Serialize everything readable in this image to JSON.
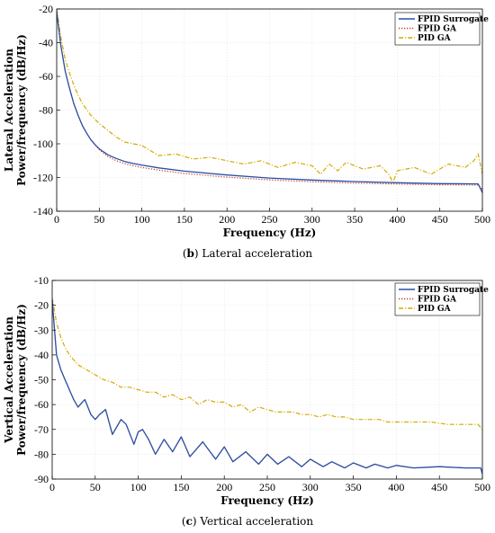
{
  "chart_data": [
    {
      "type": "line",
      "ylabel": [
        "Lateral Acceleration",
        "Power/frequency (dB/Hz)"
      ],
      "xlabel": "Frequency (Hz)",
      "xlim": [
        0,
        500
      ],
      "ylim": [
        -140,
        -20
      ],
      "xticks": [
        0,
        50,
        100,
        150,
        200,
        250,
        300,
        350,
        400,
        450,
        500
      ],
      "yticks": [
        -140,
        -120,
        -100,
        -80,
        -60,
        -40,
        -20
      ],
      "grid": true,
      "legend_position": "top-right",
      "caption_letter": "(b)",
      "caption_text": "Lateral acceleration",
      "series": [
        {
          "name": "FPID Surrogate",
          "color": "#2b4fa3",
          "style": "solid",
          "x": [
            0,
            5,
            10,
            15,
            20,
            25,
            30,
            35,
            40,
            45,
            50,
            60,
            70,
            80,
            90,
            100,
            120,
            150,
            200,
            250,
            300,
            350,
            400,
            450,
            495,
            500
          ],
          "y": [
            -22,
            -42,
            -57,
            -67,
            -76,
            -83,
            -89,
            -93.5,
            -97.5,
            -100.5,
            -103,
            -106.5,
            -108.7,
            -110.5,
            -111.7,
            -112.6,
            -114.3,
            -116.2,
            -118.5,
            -120.3,
            -121.5,
            -122.4,
            -123.1,
            -123.6,
            -123.8,
            -129
          ]
        },
        {
          "name": "FPID GA",
          "color": "#c0392b",
          "style": "dotted",
          "x": [
            0,
            5,
            10,
            15,
            20,
            25,
            30,
            35,
            40,
            45,
            50,
            60,
            70,
            80,
            90,
            100,
            120,
            150,
            200,
            250,
            300,
            350,
            400,
            450,
            495,
            500
          ],
          "y": [
            -22,
            -42,
            -57,
            -67,
            -76,
            -83,
            -89,
            -93.5,
            -97.5,
            -100.5,
            -103.5,
            -107.5,
            -110,
            -111.8,
            -113,
            -114,
            -115.6,
            -117.6,
            -119.8,
            -121.4,
            -122.5,
            -123.3,
            -123.9,
            -124.3,
            -124.5,
            -127
          ]
        },
        {
          "name": "PID GA",
          "color": "#d4aa00",
          "style": "dashdot",
          "x": [
            0,
            5,
            10,
            15,
            20,
            25,
            30,
            40,
            50,
            60,
            70,
            80,
            90,
            100,
            110,
            120,
            140,
            160,
            180,
            200,
            220,
            240,
            260,
            280,
            300,
            310,
            320,
            330,
            340,
            360,
            380,
            390,
            395,
            400,
            420,
            440,
            460,
            480,
            490,
            495,
            500
          ],
          "y": [
            -20,
            -37,
            -50,
            -58,
            -65,
            -71,
            -76,
            -83,
            -88,
            -92,
            -96,
            -99,
            -100,
            -101,
            -104,
            -107,
            -106,
            -109,
            -108,
            -110,
            -112,
            -110,
            -114,
            -111,
            -113,
            -118,
            -112,
            -116,
            -111,
            -115,
            -113,
            -118,
            -123,
            -116,
            -114,
            -118,
            -112,
            -114,
            -110,
            -106,
            -118
          ]
        }
      ]
    },
    {
      "type": "line",
      "ylabel": [
        "Vertical Acceleration",
        "Power/frequency (dB/Hz)"
      ],
      "xlabel": "Frequency (Hz)",
      "xlim": [
        0,
        500
      ],
      "ylim": [
        -90,
        -10
      ],
      "xticks": [
        0,
        50,
        100,
        150,
        200,
        250,
        300,
        350,
        400,
        450,
        500
      ],
      "yticks": [
        -90,
        -80,
        -70,
        -60,
        -50,
        -40,
        -30,
        -20,
        -10
      ],
      "grid": true,
      "legend_position": "top-right",
      "caption_letter": "(c)",
      "caption_text": "Vertical acceleration",
      "series": [
        {
          "name": "FPID Surrogate",
          "color": "#2b4fa3",
          "style": "solid",
          "x": [
            0,
            5,
            10,
            15,
            20,
            25,
            30,
            35,
            38,
            45,
            50,
            55,
            62,
            70,
            75,
            80,
            86,
            95,
            100,
            105,
            112,
            120,
            130,
            140,
            150,
            160,
            175,
            190,
            200,
            210,
            225,
            240,
            250,
            262,
            275,
            290,
            300,
            315,
            325,
            340,
            350,
            365,
            375,
            390,
            400,
            420,
            450,
            480,
            498,
            500
          ],
          "y": [
            -18,
            -40,
            -46,
            -50,
            -54,
            -58,
            -61,
            -59,
            -58,
            -64,
            -66,
            -64,
            -62,
            -72,
            -69,
            -66,
            -68,
            -76,
            -71,
            -70,
            -74,
            -80,
            -74,
            -79,
            -73,
            -81,
            -75,
            -82,
            -77,
            -83,
            -79,
            -84,
            -80,
            -84,
            -81,
            -85,
            -82,
            -85,
            -83,
            -85.5,
            -83.5,
            -85.5,
            -84,
            -85.5,
            -84.5,
            -85.5,
            -85,
            -85.5,
            -85.5,
            -88
          ]
        },
        {
          "name": "FPID GA",
          "color": "#c0392b",
          "style": "dotted",
          "x": [
            0,
            5,
            10,
            15,
            20,
            25,
            30,
            35,
            38,
            45,
            50,
            55,
            62,
            70,
            75,
            80,
            86,
            95,
            100,
            105,
            112,
            120,
            130,
            140,
            150,
            160,
            175,
            190,
            200,
            210,
            225,
            240,
            250,
            262,
            275,
            290,
            300,
            315,
            325,
            340,
            350,
            365,
            375,
            390,
            400,
            420,
            450,
            480,
            498,
            500
          ],
          "y": [
            -18,
            -40,
            -46,
            -50,
            -54,
            -58,
            -61,
            -59,
            -58,
            -64,
            -66,
            -64,
            -62,
            -72,
            -69,
            -66,
            -68,
            -76,
            -71,
            -70,
            -74,
            -80,
            -74,
            -79,
            -73,
            -81,
            -75,
            -82,
            -77,
            -83,
            -79,
            -84,
            -80,
            -84,
            -81,
            -85,
            -82,
            -85,
            -83,
            -85.5,
            -83.5,
            -85.5,
            -84,
            -85.5,
            -84.5,
            -85.5,
            -85,
            -85.5,
            -85.5,
            -88
          ]
        },
        {
          "name": "PID GA",
          "color": "#d4aa00",
          "style": "dashdot",
          "x": [
            0,
            5,
            10,
            15,
            20,
            30,
            40,
            50,
            60,
            70,
            80,
            90,
            100,
            110,
            120,
            130,
            140,
            150,
            160,
            170,
            180,
            190,
            200,
            210,
            220,
            230,
            240,
            250,
            260,
            270,
            280,
            290,
            300,
            310,
            320,
            330,
            340,
            350,
            360,
            370,
            380,
            390,
            400,
            420,
            440,
            460,
            480,
            495,
            500
          ],
          "y": [
            -17,
            -27,
            -33,
            -37,
            -40,
            -44,
            -46,
            -48,
            -50,
            -51,
            -53,
            -53,
            -54,
            -55,
            -55,
            -57,
            -56,
            -58,
            -57,
            -60,
            -58,
            -59,
            -59,
            -61,
            -60,
            -63,
            -61,
            -62,
            -63,
            -63,
            -63,
            -64,
            -64,
            -65,
            -64,
            -65,
            -65,
            -66,
            -66,
            -66,
            -66,
            -67,
            -67,
            -67,
            -67,
            -68,
            -68,
            -68,
            -70
          ]
        }
      ]
    }
  ]
}
